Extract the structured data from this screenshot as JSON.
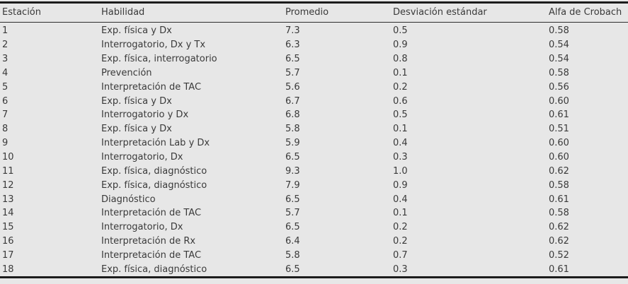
{
  "table": {
    "columns": [
      {
        "label": "Estación"
      },
      {
        "label": "Habilidad"
      },
      {
        "label": "Promedio"
      },
      {
        "label": "Desviación estándar"
      },
      {
        "label": "Alfa de Crobach"
      }
    ],
    "rows": [
      {
        "cells": [
          "1",
          "Exp. física y Dx",
          "7.3",
          "0.5",
          "0.58"
        ]
      },
      {
        "cells": [
          "2",
          "Interrogatorio, Dx y Tx",
          "6.3",
          "0.9",
          "0.54"
        ]
      },
      {
        "cells": [
          "3",
          "Exp. física, interrogatorio",
          "6.5",
          "0.8",
          "0.54"
        ]
      },
      {
        "cells": [
          "4",
          "Prevención",
          "5.7",
          "0.1",
          "0.58"
        ]
      },
      {
        "cells": [
          "5",
          "Interpretación de TAC",
          "5.6",
          "0.2",
          "0.56"
        ]
      },
      {
        "cells": [
          "6",
          "Exp. física y Dx",
          "6.7",
          "0.6",
          "0.60"
        ]
      },
      {
        "cells": [
          "7",
          "Interrogatorio y Dx",
          "6.8",
          "0.5",
          "0.61"
        ]
      },
      {
        "cells": [
          "8",
          "Exp. física y Dx",
          "5.8",
          "0.1",
          "0.51"
        ]
      },
      {
        "cells": [
          "9",
          "Interpretación Lab y Dx",
          "5.9",
          "0.4",
          "0.60"
        ]
      },
      {
        "cells": [
          "10",
          "Interrogatorio, Dx",
          "6.5",
          "0.3",
          "0.60"
        ]
      },
      {
        "cells": [
          "11",
          "Exp. física, diagnóstico",
          "9.3",
          "1.0",
          "0.62"
        ]
      },
      {
        "cells": [
          "12",
          "Exp. física, diagnóstico",
          "7.9",
          "0.9",
          "0.58"
        ]
      },
      {
        "cells": [
          "13",
          "Diagnóstico",
          "6.5",
          "0.4",
          "0.61"
        ]
      },
      {
        "cells": [
          "14",
          "Interpretación de TAC",
          "5.7",
          "0.1",
          "0.58"
        ]
      },
      {
        "cells": [
          "15",
          "Interrogatorio, Dx",
          "6.5",
          "0.2",
          "0.62"
        ]
      },
      {
        "cells": [
          "16",
          "Interpretación de Rx",
          "6.4",
          "0.2",
          "0.62"
        ]
      },
      {
        "cells": [
          "17",
          "Interpretación de TAC",
          "5.8",
          "0.7",
          "0.52"
        ]
      },
      {
        "cells": [
          "18",
          "Exp. física, diagnóstico",
          "6.5",
          "0.3",
          "0.61"
        ]
      }
    ]
  },
  "colors": {
    "background": "#e7e7e7",
    "text": "#3a3a3a",
    "rule_heavy": "#1c1c1c",
    "rule_light": "#2e2e2e"
  }
}
